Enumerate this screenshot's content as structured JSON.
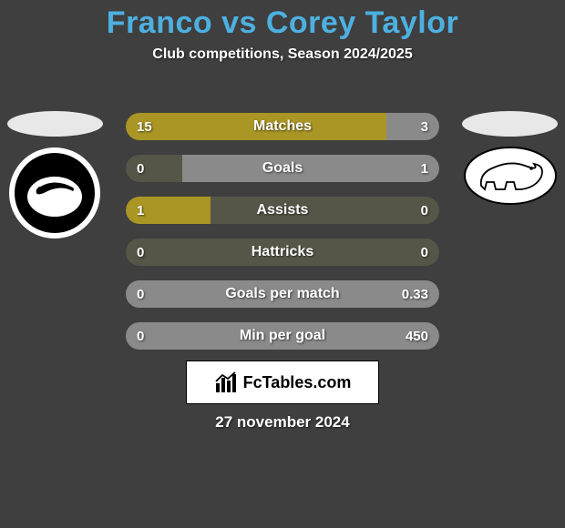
{
  "background_color": "#3f3f3f",
  "title": {
    "text": "Franco vs Corey Taylor",
    "color": "#4db0e0",
    "fontsize": 34
  },
  "subtitle": {
    "text": "Club competitions, Season 2024/2025",
    "fontsize": 16
  },
  "player_left_color": "#a99625",
  "player_right_color": "#8a8a8a",
  "track_color": "#565648",
  "stats": [
    {
      "label": "Matches",
      "left_val": "15",
      "right_val": "3",
      "left_pct": 83,
      "right_pct": 17
    },
    {
      "label": "Goals",
      "left_val": "0",
      "right_val": "1",
      "left_pct": 0,
      "right_pct": 82
    },
    {
      "label": "Assists",
      "left_val": "1",
      "right_val": "0",
      "left_pct": 27,
      "right_pct": 0
    },
    {
      "label": "Hattricks",
      "left_val": "0",
      "right_val": "0",
      "left_pct": 0,
      "right_pct": 0
    },
    {
      "label": "Goals per match",
      "left_val": "0",
      "right_val": "0.33",
      "left_pct": 0,
      "right_pct": 100
    },
    {
      "label": "Min per goal",
      "left_val": "0",
      "right_val": "450",
      "left_pct": 0,
      "right_pct": 100
    }
  ],
  "brand": {
    "text": "FcTables.com",
    "fontsize": 18
  },
  "date": "27 november 2024",
  "logos": {
    "left": {
      "name": "swansea-city-afc-logo",
      "bg": "#ffffff",
      "ring": "#000000"
    },
    "right": {
      "name": "derby-county-logo",
      "bg": "#ffffff",
      "ring": "#000000"
    }
  }
}
